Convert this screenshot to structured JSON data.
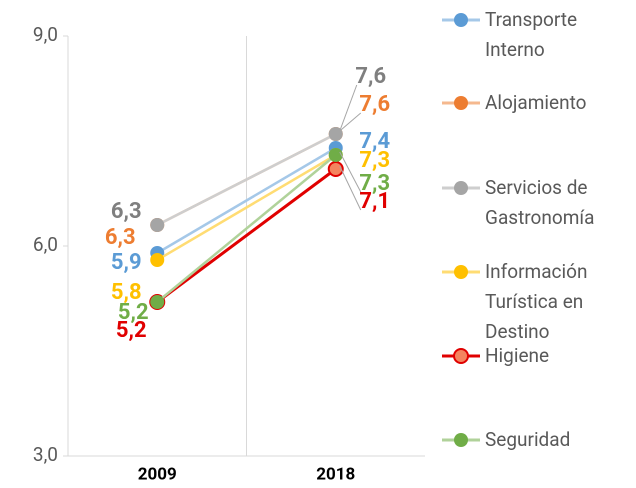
{
  "chart_data": {
    "type": "line",
    "categories": [
      "2009",
      "2018"
    ],
    "ylim": [
      3,
      9
    ],
    "yticks": [
      {
        "value": 3,
        "label": "3,0"
      },
      {
        "value": 6,
        "label": "6,0"
      },
      {
        "value": 9,
        "label": "9,0"
      }
    ],
    "grid": true,
    "legend": "right",
    "series": [
      {
        "name": "Transporte Interno",
        "color": "#5b9bd5",
        "values": [
          5.9,
          7.4
        ],
        "value_labels": [
          "5,9",
          "7,4"
        ]
      },
      {
        "name": "Alojamiento",
        "color": "#ed7d31",
        "values": [
          6.3,
          7.6
        ],
        "value_labels": [
          "6,3",
          "7,6"
        ]
      },
      {
        "name": "Servicios de Gastronomía",
        "color": "#a5a5a5",
        "values": [
          6.3,
          7.6
        ],
        "value_labels": [
          "6,3",
          "7,6"
        ]
      },
      {
        "name": "Información Turística en Destino",
        "color": "#ffc000",
        "values": [
          5.8,
          7.3
        ],
        "value_labels": [
          "5,8",
          "7,3"
        ]
      },
      {
        "name": "Higiene",
        "color": "#ff0000",
        "values": [
          5.2,
          7.1
        ],
        "value_labels": [
          "5,2",
          "7,1"
        ]
      },
      {
        "name": "Seguridad",
        "color": "#70ad47",
        "values": [
          5.2,
          7.3
        ],
        "value_labels": [
          "5,2",
          "7,3"
        ]
      }
    ]
  }
}
